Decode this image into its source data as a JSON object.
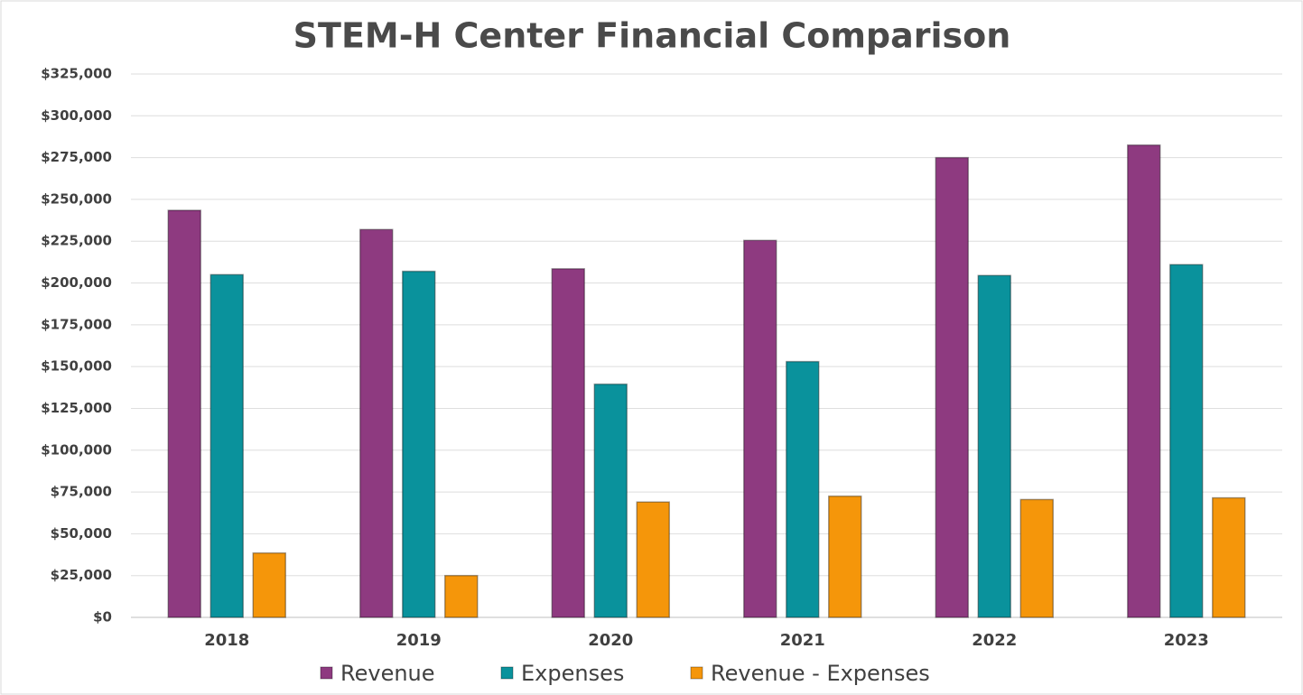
{
  "chart_data": {
    "type": "bar",
    "title": "STEM-H Center Financial Comparison",
    "categories": [
      "2018",
      "2019",
      "2020",
      "2021",
      "2022",
      "2023"
    ],
    "series": [
      {
        "name": "Revenue",
        "color": "#8e3a80",
        "values": [
          243500,
          232000,
          208500,
          225500,
          275000,
          282500
        ]
      },
      {
        "name": "Expenses",
        "color": "#0a929c",
        "values": [
          205000,
          207000,
          139500,
          153000,
          204500,
          211000
        ]
      },
      {
        "name": "Revenue - Expenses",
        "color": "#f5960a",
        "values": [
          38500,
          25000,
          69000,
          72500,
          70500,
          71500
        ]
      }
    ],
    "ylim": [
      0,
      325000
    ],
    "yticks": [
      {
        "value": 0,
        "label": "$0"
      },
      {
        "value": 25000,
        "label": "$25,000"
      },
      {
        "value": 50000,
        "label": "$50,000"
      },
      {
        "value": 75000,
        "label": "$75,000"
      },
      {
        "value": 100000,
        "label": "$100,000"
      },
      {
        "value": 125000,
        "label": "$125,000"
      },
      {
        "value": 150000,
        "label": "$150,000"
      },
      {
        "value": 175000,
        "label": "$175,000"
      },
      {
        "value": 200000,
        "label": "$200,000"
      },
      {
        "value": 225000,
        "label": "$225,000"
      },
      {
        "value": 250000,
        "label": "$250,000"
      },
      {
        "value": 275000,
        "label": "$275,000"
      },
      {
        "value": 300000,
        "label": "$300,000"
      },
      {
        "value": 325000,
        "label": "$325,000"
      }
    ],
    "grid": true,
    "legend": "bottom"
  }
}
